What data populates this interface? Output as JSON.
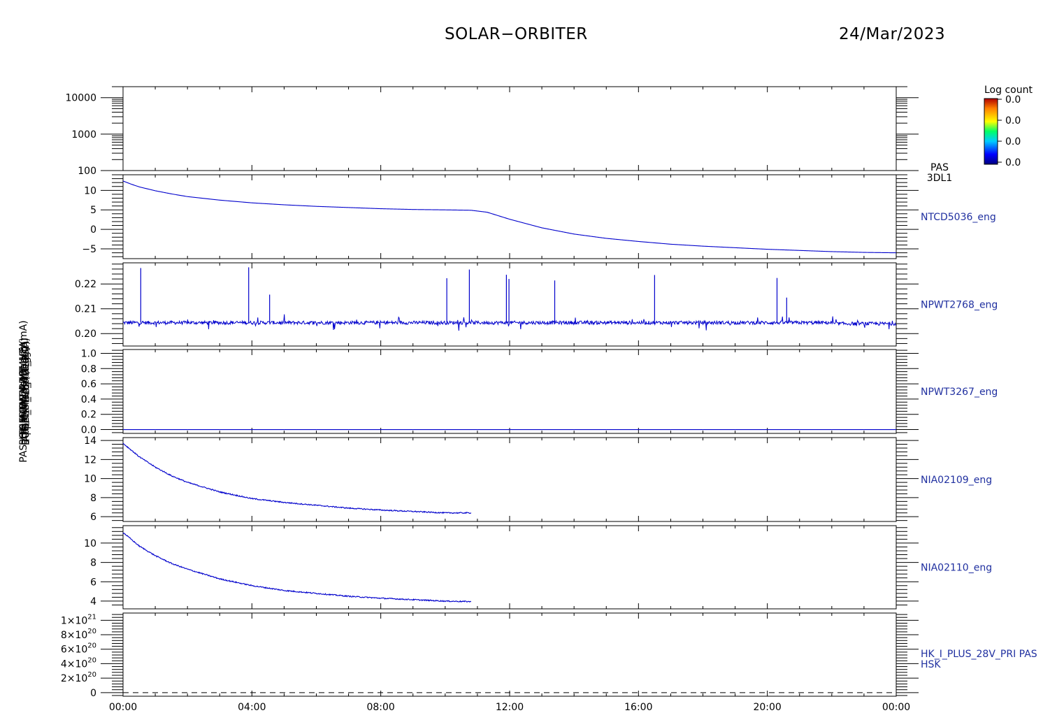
{
  "header": {
    "title": "SOLAR−ORBITER",
    "date": "24/Mar/2023"
  },
  "colors": {
    "axis": "#000000",
    "trace": "#0000cc",
    "label": "#2030a0"
  },
  "colorbar": {
    "title": "Log count",
    "ticks": [
      "0.0",
      "0.0",
      "0.0",
      "0.0"
    ]
  },
  "chart_data": {
    "type": "line",
    "x_ticks": [
      "00:00",
      "04:00",
      "08:00",
      "12:00",
      "16:00",
      "20:00",
      "00:00"
    ],
    "x_range_hours": [
      0,
      24
    ],
    "panels": [
      {
        "id": "pas-3dl1",
        "type": "heatmap",
        "label": [
          "PAS",
          "3DL1"
        ],
        "ylabel": "PAS (eV)",
        "log_scale": true,
        "ylim": [
          100,
          20000
        ],
        "y_ticks": [
          {
            "value": 100,
            "label": "100"
          },
          {
            "value": 1000,
            "label": "1000"
          },
          {
            "value": 10000,
            "label": "10000"
          }
        ],
        "data": []
      },
      {
        "id": "ntcd5036",
        "label": [
          "NTCD5036_eng"
        ],
        "ylabel": "Approx Temp (DegC)",
        "ylim": [
          -7.5,
          14
        ],
        "y_ticks": [
          {
            "value": -5,
            "label": "−5"
          },
          {
            "value": 0,
            "label": "0"
          },
          {
            "value": 5,
            "label": "5"
          },
          {
            "value": 10,
            "label": "10"
          }
        ],
        "end_hour": 24,
        "series": [
          {
            "x": [
              0,
              0.25,
              0.5,
              1,
              1.5,
              2,
              3,
              4,
              5,
              6,
              7,
              8,
              9,
              10,
              10.8,
              11.3,
              12,
              13,
              14,
              15,
              16,
              17,
              18,
              19,
              20,
              21,
              22,
              23,
              24
            ],
            "y": [
              12.4,
              11.6,
              10.9,
              9.9,
              9.1,
              8.4,
              7.5,
              6.8,
              6.3,
              5.9,
              5.6,
              5.3,
              5.1,
              5.0,
              4.9,
              4.4,
              2.6,
              0.4,
              -1.2,
              -2.3,
              -3.1,
              -3.8,
              -4.3,
              -4.7,
              -5.1,
              -5.4,
              -5.7,
              -5.9,
              -6.0
            ]
          }
        ]
      },
      {
        "id": "npwt2768",
        "label": [
          "NPWT2768_eng"
        ],
        "ylabel": "BOOM_SWA_ALT_1 (A)",
        "ylim": [
          0.195,
          0.2285
        ],
        "y_ticks": [
          {
            "value": 0.2,
            "label": "0.20"
          },
          {
            "value": 0.21,
            "label": "0.21"
          },
          {
            "value": 0.22,
            "label": "0.22"
          }
        ],
        "baseline": 0.2044,
        "end_hour": 24,
        "spikes": [
          {
            "x": 0.55,
            "y": 0.2264
          },
          {
            "x": 3.9,
            "y": 0.2267
          },
          {
            "x": 4.55,
            "y": 0.2157
          },
          {
            "x": 10.05,
            "y": 0.2223
          },
          {
            "x": 10.75,
            "y": 0.2258
          },
          {
            "x": 11.9,
            "y": 0.2237
          },
          {
            "x": 11.98,
            "y": 0.222
          },
          {
            "x": 13.4,
            "y": 0.2214
          },
          {
            "x": 16.5,
            "y": 0.2236
          },
          {
            "x": 20.3,
            "y": 0.2224
          },
          {
            "x": 20.6,
            "y": 0.2145
          }
        ]
      },
      {
        "id": "npwt3267",
        "label": [
          "NPWT3267_eng"
        ],
        "ylabel": "BOOM_SWA_ALT_2 (A)",
        "ylim": [
          -0.05,
          1.05
        ],
        "y_ticks": [
          {
            "value": 0.0,
            "label": "0.0"
          },
          {
            "value": 0.2,
            "label": "0.2"
          },
          {
            "value": 0.4,
            "label": "0.4"
          },
          {
            "value": 0.6,
            "label": "0.6"
          },
          {
            "value": 0.8,
            "label": "0.8"
          },
          {
            "value": 1.0,
            "label": "1.0"
          }
        ],
        "end_hour": 24,
        "series": [
          {
            "x": [
              0,
              24
            ],
            "y": [
              0.0,
              0.0
            ]
          }
        ]
      },
      {
        "id": "nia02109",
        "label": [
          "NIA02109_eng"
        ],
        "ylabel": "THERM_CA (DegC)",
        "ylim": [
          5.5,
          14.3
        ],
        "y_ticks": [
          {
            "value": 6,
            "label": "6"
          },
          {
            "value": 8,
            "label": "8"
          },
          {
            "value": 10,
            "label": "10"
          },
          {
            "value": 12,
            "label": "12"
          },
          {
            "value": 14,
            "label": "14"
          }
        ],
        "end_hour": 10.8,
        "series": [
          {
            "x": [
              0,
              0.25,
              0.5,
              1,
              1.5,
              2,
              3,
              4,
              5,
              6,
              7,
              8,
              9,
              10,
              10.8
            ],
            "y": [
              13.7,
              13.0,
              12.3,
              11.2,
              10.3,
              9.6,
              8.6,
              7.9,
              7.5,
              7.2,
              6.9,
              6.7,
              6.55,
              6.4,
              6.4
            ]
          }
        ]
      },
      {
        "id": "nia02110",
        "label": [
          "NIA02110_eng"
        ],
        "ylabel": "THERM_CB (DegC)",
        "ylim": [
          3.2,
          11.8
        ],
        "y_ticks": [
          {
            "value": 4,
            "label": "4"
          },
          {
            "value": 6,
            "label": "6"
          },
          {
            "value": 8,
            "label": "8"
          },
          {
            "value": 10,
            "label": "10"
          }
        ],
        "end_hour": 10.8,
        "series": [
          {
            "x": [
              0,
              0.25,
              0.5,
              1,
              1.5,
              2,
              3,
              4,
              5,
              6,
              7,
              8,
              9,
              10,
              10.8
            ],
            "y": [
              11.1,
              10.4,
              9.7,
              8.7,
              7.9,
              7.3,
              6.3,
              5.6,
              5.1,
              4.8,
              4.5,
              4.3,
              4.15,
              4.0,
              3.95
            ]
          }
        ]
      },
      {
        "id": "hk-i-plus-28v",
        "label": [
          "HK_I_PLUS_28V_PRI PAS",
          "HSK"
        ],
        "ylabel": "PAS_HK_IMON_PDRMHE (mA)",
        "ylim": [
          -5e+19,
          1.1e+21
        ],
        "y_ticks": [
          {
            "value": 0,
            "mant": "0",
            "exp": ""
          },
          {
            "value": 2e+20,
            "mant": "2×10",
            "exp": "20"
          },
          {
            "value": 4e+20,
            "mant": "4×10",
            "exp": "20"
          },
          {
            "value": 6e+20,
            "mant": "6×10",
            "exp": "20"
          },
          {
            "value": 8e+20,
            "mant": "8×10",
            "exp": "20"
          },
          {
            "value": 1e+21,
            "mant": "1×10",
            "exp": "21"
          }
        ],
        "dashed_line": 0
      }
    ]
  }
}
